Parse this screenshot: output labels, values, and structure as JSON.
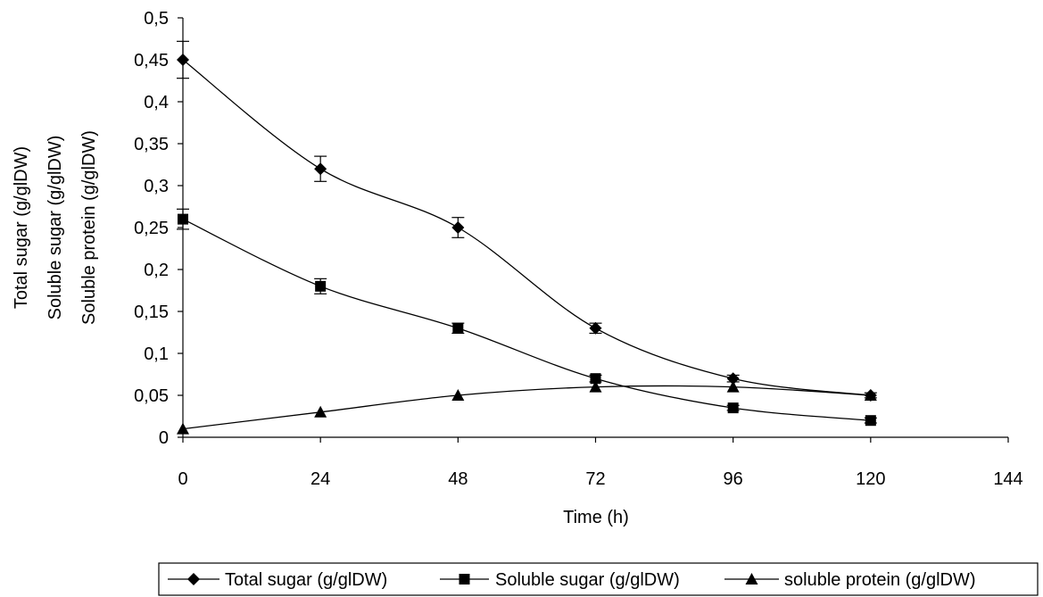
{
  "chart_data": {
    "type": "line",
    "title": "",
    "xlabel": "Time (h)",
    "ylabels": [
      "Total sugar (g/glDW)",
      "Soluble sugar (g/glDW)",
      "Soluble protein (g/glDW)"
    ],
    "xlim": [
      0,
      144
    ],
    "ylim": [
      0,
      0.5
    ],
    "xticks": [
      0,
      24,
      48,
      72,
      96,
      120,
      144
    ],
    "xtick_labels": [
      "0",
      "24",
      "48",
      "72",
      "96",
      "120",
      "144"
    ],
    "yticks": [
      0,
      0.05,
      0.1,
      0.15,
      0.2,
      0.25,
      0.3,
      0.35,
      0.4,
      0.45,
      0.5
    ],
    "ytick_labels": [
      "0",
      "0,05",
      "0,1",
      "0,15",
      "0,2",
      "0,25",
      "0,3",
      "0,35",
      "0,4",
      "0,45",
      "0,5"
    ],
    "grid": false,
    "legend_position": "bottom",
    "x": [
      0,
      24,
      48,
      72,
      96,
      120
    ],
    "series": [
      {
        "name": "Total sugar (g/glDW)",
        "marker": "diamond",
        "values": [
          0.45,
          0.32,
          0.25,
          0.13,
          0.07,
          0.05
        ],
        "errors": [
          0.022,
          0.015,
          0.012,
          0.006,
          0.004,
          0.003
        ]
      },
      {
        "name": "Soluble sugar (g/glDW)",
        "marker": "square",
        "values": [
          0.26,
          0.18,
          0.13,
          0.07,
          0.035,
          0.02
        ],
        "errors": [
          0.012,
          0.009,
          0.006,
          0.004,
          0.003,
          0.003
        ]
      },
      {
        "name": "soluble protein (g/glDW)",
        "marker": "triangle",
        "values": [
          0.01,
          0.03,
          0.05,
          0.06,
          0.06,
          0.05
        ],
        "errors": [
          0,
          0,
          0,
          0,
          0,
          0
        ]
      }
    ]
  }
}
